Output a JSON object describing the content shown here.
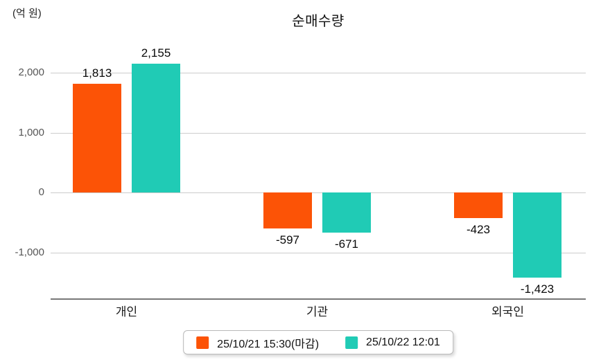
{
  "title": "순매수량",
  "unit_label": "(억 원)",
  "legend": [
    {
      "label": "25/10/21 15:30(마감)",
      "color": "#FC5306"
    },
    {
      "label": "25/10/22 12:01",
      "color": "#20CBB5"
    }
  ],
  "chart_data": {
    "type": "bar",
    "title": "순매수량",
    "ylabel": "(억 원)",
    "categories": [
      "개인",
      "기관",
      "외국인"
    ],
    "series": [
      {
        "name": "25/10/21 15:30(마감)",
        "color": "#FC5306",
        "values": [
          1813,
          -597,
          -423
        ]
      },
      {
        "name": "25/10/22 12:01",
        "color": "#20CBB5",
        "values": [
          2155,
          -671,
          -1423
        ]
      }
    ],
    "yticks": [
      2000,
      1000,
      0,
      -1000
    ],
    "ylim": [
      -1800,
      2400
    ],
    "grid": true,
    "legend_position": "bottom",
    "value_label_format": "thousands-comma"
  }
}
